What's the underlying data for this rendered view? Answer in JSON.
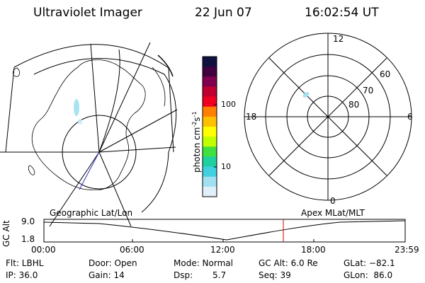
{
  "header": {
    "title": "Ultraviolet Imager",
    "date": "22 Jun 07",
    "time": "16:02:54 UT"
  },
  "colorbar": {
    "unit": "photon cm",
    "unit_exp1": "-2",
    "unit_s": "s",
    "unit_exp2": "-1",
    "tick_100": "100",
    "tick_10": "10",
    "colors": [
      "#101040",
      "#400040",
      "#800050",
      "#c00030",
      "#f00020",
      "#ff8000",
      "#ffc000",
      "#ffff00",
      "#c0ff00",
      "#40e040",
      "#20d0a0",
      "#40d0e0",
      "#a0e0f0",
      "#e0f0f8"
    ]
  },
  "left_map": {
    "label": "Geographic Lat/Lon"
  },
  "right_map": {
    "label": "Apex MLat/MLT",
    "mlt_12": "12",
    "mlt_18": "18",
    "mlt_6": "6",
    "mlt_0": "0",
    "lat_60": "60",
    "lat_70": "70",
    "lat_80": "80"
  },
  "altitude_plot": {
    "ylabel": "GC Alt",
    "y_top": "9.0",
    "y_bottom": "1.8",
    "x_ticks": [
      "00:00",
      "06:00",
      "12:00",
      "18:00",
      "23:59"
    ],
    "marker_color": "#cc0000"
  },
  "footer": {
    "flt": "Flt: LBHL",
    "ip": "IP: 36.0",
    "door": "Door: Open",
    "gain": "Gain: 14",
    "mode": "Mode: Normal",
    "dsp_label": "Dsp:",
    "dsp_value": "5.7",
    "gc_alt": "GC Alt: 6.0 Re",
    "seq": "Seq: 39",
    "glat": "GLat: −82.1",
    "glon": "GLon:  86.0"
  }
}
